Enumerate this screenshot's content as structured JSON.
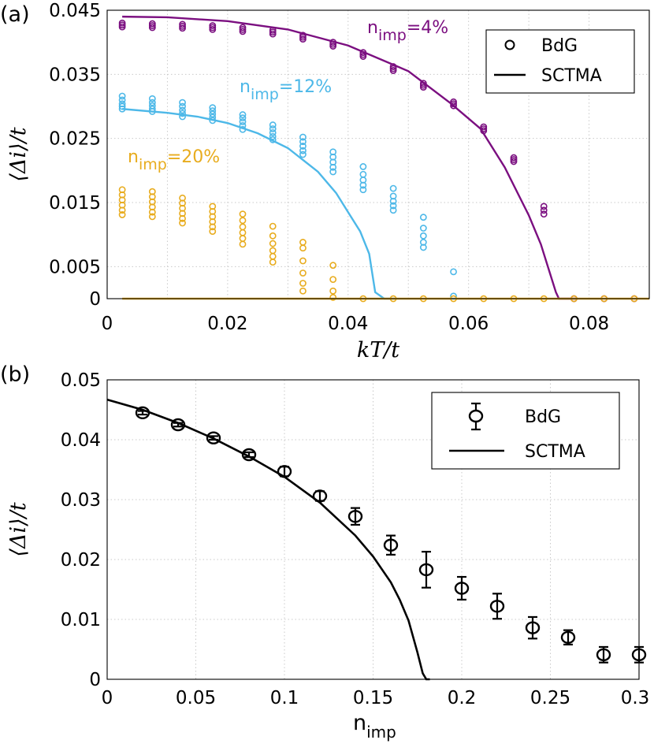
{
  "chart_data": [
    {
      "type": "scatter",
      "panel_label": "(a)",
      "xlabel": "kT/t",
      "ylabel": "⟨Δi⟩/t",
      "xlim": [
        0,
        0.09
      ],
      "ylim": [
        0,
        0.045
      ],
      "x_ticks": [
        0,
        0.02,
        0.04,
        0.06,
        0.08
      ],
      "x_tick_labels": [
        "0",
        "0.02",
        "0.04",
        "0.06",
        "0.08"
      ],
      "y_ticks": [
        0,
        0.005,
        0.015,
        0.025,
        0.035,
        0.045
      ],
      "y_tick_labels": [
        "0",
        "0.005",
        "0.015",
        "0.025",
        "0.035",
        "0.045"
      ],
      "grid": true,
      "legend_position": "top-right",
      "legend": [
        {
          "label": "BdG",
          "marker": "circle"
        },
        {
          "label": "SCTMA",
          "marker": "line"
        }
      ],
      "series": [
        {
          "label_main": "n",
          "label_sub": "imp",
          "label_tail": "=4%",
          "color": "#7b0f80",
          "bdg": [
            [
              0.0025,
              [
                0.0424,
                0.0427,
                0.043
              ]
            ],
            [
              0.0075,
              [
                0.0423,
                0.0426,
                0.0429
              ]
            ],
            [
              0.0125,
              [
                0.0422,
                0.0425,
                0.0428
              ]
            ],
            [
              0.0175,
              [
                0.042,
                0.0423,
                0.0426
              ]
            ],
            [
              0.0225,
              [
                0.0417,
                0.042,
                0.0423
              ]
            ],
            [
              0.0275,
              [
                0.0413,
                0.0416,
                0.0419
              ]
            ],
            [
              0.0325,
              [
                0.0405,
                0.0408,
                0.0411
              ]
            ],
            [
              0.0375,
              [
                0.0394,
                0.0397,
                0.04
              ]
            ],
            [
              0.0425,
              [
                0.0378,
                0.0381,
                0.0384
              ]
            ],
            [
              0.0475,
              [
                0.0356,
                0.0359,
                0.0362
              ]
            ],
            [
              0.0525,
              [
                0.033,
                0.0333,
                0.0336
              ]
            ],
            [
              0.0575,
              [
                0.0301,
                0.0304,
                0.0307
              ]
            ],
            [
              0.0625,
              [
                0.0262,
                0.0265,
                0.0268
              ]
            ],
            [
              0.0675,
              [
                0.0214,
                0.0217,
                0.022
              ]
            ],
            [
              0.0725,
              [
                0.0132,
                0.0138,
                0.0144
              ]
            ],
            [
              0.0775,
              [
                0
              ]
            ],
            [
              0.0825,
              [
                0
              ]
            ],
            [
              0.0875,
              [
                0
              ]
            ]
          ],
          "sctma_x": [
            0.0025,
            0.01,
            0.02,
            0.03,
            0.04,
            0.05,
            0.057,
            0.062,
            0.066,
            0.07,
            0.072,
            0.0735,
            0.0745,
            0.075,
            0.078
          ],
          "sctma_y": [
            0.044,
            0.0439,
            0.0433,
            0.042,
            0.0395,
            0.0355,
            0.0305,
            0.0265,
            0.0205,
            0.013,
            0.0085,
            0.004,
            0.001,
            0.0,
            0.0
          ]
        },
        {
          "label_main": "n",
          "label_sub": "imp",
          "label_tail": "=12%",
          "color": "#4db8e8",
          "bdg": [
            [
              0.0025,
              [
                0.0296,
                0.03,
                0.0304,
                0.031,
                0.0316
              ]
            ],
            [
              0.0075,
              [
                0.0292,
                0.0296,
                0.0301,
                0.0306,
                0.0312
              ]
            ],
            [
              0.0125,
              [
                0.0284,
                0.0289,
                0.0294,
                0.03,
                0.0306
              ]
            ],
            [
              0.0175,
              [
                0.0278,
                0.0283,
                0.0288,
                0.0293,
                0.0298
              ]
            ],
            [
              0.0225,
              [
                0.0264,
                0.027,
                0.0276,
                0.0282,
                0.0287
              ]
            ],
            [
              0.0275,
              [
                0.0248,
                0.0253,
                0.0259,
                0.0265,
                0.0271
              ]
            ],
            [
              0.0325,
              [
                0.0225,
                0.0231,
                0.0238,
                0.0245,
                0.0252
              ]
            ],
            [
              0.0375,
              [
                0.0198,
                0.0205,
                0.0213,
                0.0221,
                0.0229
              ]
            ],
            [
              0.0425,
              [
                0.017,
                0.0177,
                0.0185,
                0.0194,
                0.0206
              ]
            ],
            [
              0.0475,
              [
                0.0138,
                0.0145,
                0.0152,
                0.016,
                0.0172
              ]
            ],
            [
              0.0525,
              [
                0.008,
                0.0088,
                0.0098,
                0.011,
                0.0127
              ]
            ],
            [
              0.0575,
              [
                0.0004,
                0.0042
              ]
            ]
          ],
          "sctma_x": [
            0.0025,
            0.01,
            0.015,
            0.02,
            0.025,
            0.03,
            0.035,
            0.038,
            0.04,
            0.042,
            0.0435,
            0.0445,
            0.046,
            0.048
          ],
          "sctma_y": [
            0.0296,
            0.029,
            0.0284,
            0.0274,
            0.0258,
            0.0235,
            0.0198,
            0.0165,
            0.0135,
            0.0105,
            0.007,
            0.001,
            0.0,
            0.0
          ]
        },
        {
          "label_main": "n",
          "label_sub": "imp",
          "label_tail": "=20%",
          "color": "#e8ac1e",
          "bdg": [
            [
              0.0025,
              [
                0.0131,
                0.0138,
                0.0146,
                0.0154,
                0.0162,
                0.017
              ]
            ],
            [
              0.0075,
              [
                0.0128,
                0.0135,
                0.0143,
                0.0151,
                0.0159,
                0.0167
              ]
            ],
            [
              0.0125,
              [
                0.0118,
                0.0125,
                0.0133,
                0.0141,
                0.0149,
                0.0157
              ]
            ],
            [
              0.0175,
              [
                0.0105,
                0.0112,
                0.012,
                0.0128,
                0.0136,
                0.0144
              ]
            ],
            [
              0.0225,
              [
                0.0085,
                0.0094,
                0.0103,
                0.0112,
                0.0122,
                0.0132
              ]
            ],
            [
              0.0275,
              [
                0.0057,
                0.0066,
                0.0075,
                0.0086,
                0.0098,
                0.0113
              ]
            ],
            [
              0.0325,
              [
                0.0012,
                0.0024,
                0.004,
                0.0059,
                0.0079,
                0.0088
              ]
            ],
            [
              0.0375,
              [
                0.0002,
                0.0012,
                0.003,
                0.0052
              ]
            ],
            [
              0.0425,
              [
                0
              ]
            ],
            [
              0.0475,
              [
                0
              ]
            ],
            [
              0.0525,
              [
                0
              ]
            ],
            [
              0.0575,
              [
                0
              ]
            ],
            [
              0.0625,
              [
                0
              ]
            ],
            [
              0.0675,
              [
                0
              ]
            ],
            [
              0.0725,
              [
                0
              ]
            ],
            [
              0.0775,
              [
                0
              ]
            ],
            [
              0.0825,
              [
                0
              ]
            ],
            [
              0.0875,
              [
                0
              ]
            ]
          ],
          "sctma_x": [
            0.0025,
            0.09
          ],
          "sctma_y": [
            0.0,
            0.0
          ]
        }
      ]
    },
    {
      "type": "line",
      "panel_label": "(b)",
      "xlabel_main": "n",
      "xlabel_sub": "imp",
      "ylabel": "⟨Δi⟩/t",
      "xlim": [
        0,
        0.3
      ],
      "ylim": [
        0,
        0.05
      ],
      "x_ticks": [
        0,
        0.05,
        0.1,
        0.15,
        0.2,
        0.25,
        0.3
      ],
      "x_tick_labels": [
        "0",
        "0.05",
        "0.1",
        "0.15",
        "0.2",
        "0.25",
        "0.3"
      ],
      "y_ticks": [
        0,
        0.01,
        0.02,
        0.03,
        0.04,
        0.05
      ],
      "y_tick_labels": [
        "0",
        "0.01",
        "0.02",
        "0.03",
        "0.04",
        "0.05"
      ],
      "grid": true,
      "legend_position": "top-right",
      "legend": [
        {
          "label": "BdG",
          "marker": "circle-errorbar"
        },
        {
          "label": "SCTMA",
          "marker": "line"
        }
      ],
      "bdg": {
        "x": [
          0.02,
          0.04,
          0.06,
          0.08,
          0.1,
          0.12,
          0.14,
          0.16,
          0.18,
          0.2,
          0.22,
          0.24,
          0.26,
          0.28,
          0.3
        ],
        "y": [
          0.0445,
          0.0425,
          0.0403,
          0.0375,
          0.0347,
          0.0306,
          0.0272,
          0.0224,
          0.0183,
          0.0152,
          0.0122,
          0.0086,
          0.007,
          0.0041,
          0.0041
        ],
        "err": [
          0.0003,
          0.0003,
          0.0003,
          0.0004,
          0.0008,
          0.0008,
          0.0014,
          0.0016,
          0.003,
          0.0019,
          0.0021,
          0.0018,
          0.0012,
          0.0013,
          0.0013
        ]
      },
      "sctma": {
        "x": [
          0,
          0.02,
          0.04,
          0.06,
          0.08,
          0.1,
          0.12,
          0.14,
          0.15,
          0.16,
          0.165,
          0.17,
          0.175,
          0.178,
          0.18,
          0.182
        ],
        "y": [
          0.0467,
          0.045,
          0.0428,
          0.0402,
          0.0372,
          0.0338,
          0.0295,
          0.024,
          0.0205,
          0.0162,
          0.0133,
          0.0098,
          0.0045,
          0.001,
          0.0,
          0.0
        ]
      },
      "color": "#000000"
    }
  ]
}
